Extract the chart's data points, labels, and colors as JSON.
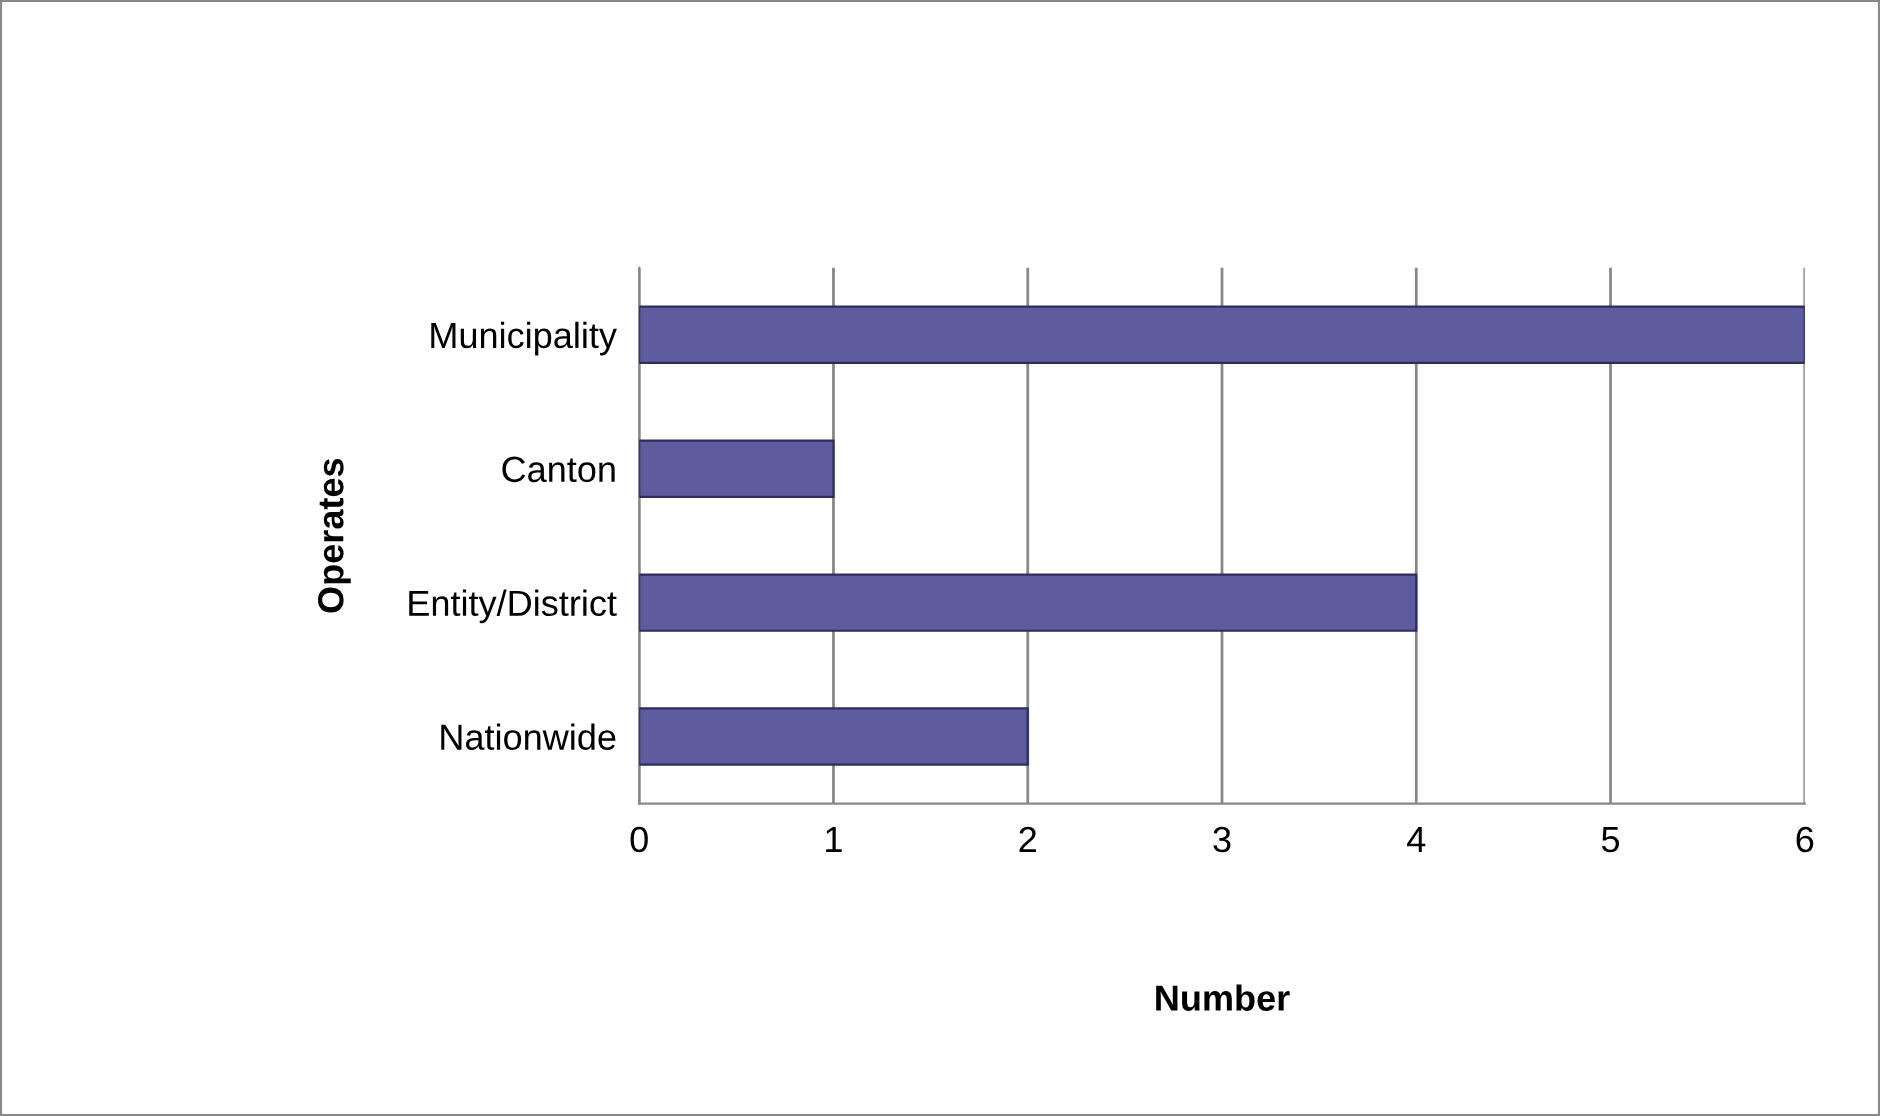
{
  "chart_data": {
    "type": "bar",
    "orientation": "horizontal",
    "xlabel": "Number",
    "ylabel": "Operates",
    "categories": [
      "Municipality",
      "Canton",
      "Entity/District",
      "Nationwide"
    ],
    "values": [
      6,
      1,
      4,
      2
    ],
    "color": "#5c5c9e",
    "xlim": [
      0,
      6
    ],
    "xticks": [
      0,
      1,
      2,
      3,
      4,
      5,
      6
    ],
    "grid": "x",
    "legend": false
  }
}
